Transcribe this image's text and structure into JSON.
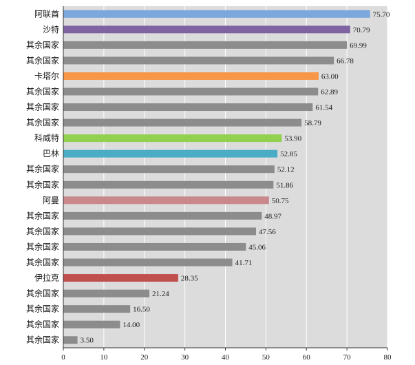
{
  "chart_data": {
    "type": "bar",
    "orientation": "horizontal",
    "categories": [
      "阿联酋",
      "沙特",
      "其余国家",
      "其余国家",
      "卡塔尔",
      "其余国家",
      "其余国家",
      "其余国家",
      "科威特",
      "巴林",
      "其余国家",
      "其余国家",
      "阿曼",
      "其余国家",
      "其余国家",
      "其余国家",
      "其余国家",
      "伊拉克",
      "其余国家",
      "其余国家",
      "其余国家",
      "其余国家"
    ],
    "values": [
      75.7,
      70.79,
      69.99,
      66.78,
      63.0,
      62.89,
      61.54,
      58.79,
      53.9,
      52.85,
      52.12,
      51.86,
      50.75,
      48.97,
      47.56,
      45.06,
      41.71,
      28.35,
      21.24,
      16.5,
      14.0,
      3.5
    ],
    "value_labels": [
      "75.70",
      "70.79",
      "69.99",
      "66.78",
      "63.00",
      "62.89",
      "61.54",
      "58.79",
      "53.90",
      "52.85",
      "52.12",
      "51.86",
      "50.75",
      "48.97",
      "47.56",
      "45.06",
      "41.71",
      "28.35",
      "21.24",
      "16.50",
      "14.00",
      "3.50"
    ],
    "colors": [
      "#7ba7dc",
      "#8064a2",
      "#8c8c8c",
      "#8c8c8c",
      "#f79646",
      "#8c8c8c",
      "#8c8c8c",
      "#8c8c8c",
      "#92d050",
      "#4bacc6",
      "#8c8c8c",
      "#8c8c8c",
      "#c9888c",
      "#8c8c8c",
      "#8c8c8c",
      "#8c8c8c",
      "#8c8c8c",
      "#c0504d",
      "#8c8c8c",
      "#8c8c8c",
      "#8c8c8c",
      "#8c8c8c"
    ],
    "xlim": [
      0,
      80
    ],
    "xticks": [
      "0",
      "10",
      "20",
      "30",
      "40",
      "50",
      "60",
      "70",
      "80"
    ],
    "title": "",
    "xlabel": "",
    "ylabel": "",
    "grid": true,
    "plot_background": "#dcdcdc"
  }
}
